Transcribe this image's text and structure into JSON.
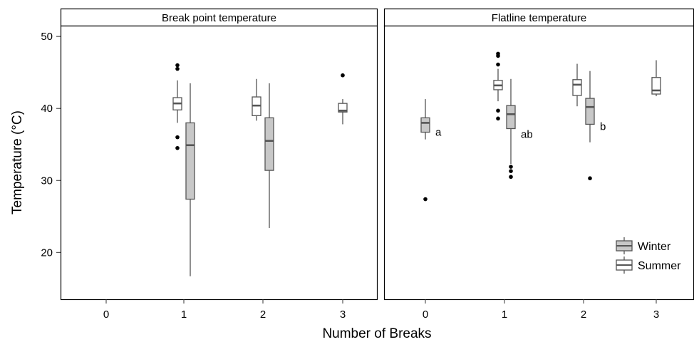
{
  "chart_data": {
    "type": "boxplot",
    "xlabel": "Number of Breaks",
    "ylabel": "Temperature (°C)",
    "ylim": [
      13.5,
      51.5
    ],
    "yticks": [
      20,
      30,
      40,
      50
    ],
    "categories": [
      "0",
      "1",
      "2",
      "3"
    ],
    "legend": {
      "position": "bottom-right",
      "entries": [
        {
          "name": "Winter",
          "color": "#c8c8c8"
        },
        {
          "name": "Summer",
          "color": "#ffffff"
        }
      ]
    },
    "panels": [
      {
        "strip_label": "Break point temperature",
        "boxes": [
          {
            "category": "1",
            "series": "Summer",
            "q1": 39.8,
            "median": 40.7,
            "q3": 41.5,
            "whisker_low": 38.0,
            "whisker_high": 43.9,
            "outliers": [
              46.0,
              45.5,
              36.0,
              34.5
            ]
          },
          {
            "category": "1",
            "series": "Winter",
            "q1": 27.4,
            "median": 34.9,
            "q3": 38.0,
            "whisker_low": 16.7,
            "whisker_high": 43.5,
            "outliers": []
          },
          {
            "category": "2",
            "series": "Summer",
            "q1": 39.0,
            "median": 40.4,
            "q3": 41.6,
            "whisker_low": 38.3,
            "whisker_high": 44.1,
            "outliers": []
          },
          {
            "category": "2",
            "series": "Winter",
            "q1": 31.4,
            "median": 35.5,
            "q3": 38.7,
            "whisker_low": 23.4,
            "whisker_high": 43.5,
            "outliers": []
          },
          {
            "category": "3",
            "series": "Summer",
            "q1": 39.5,
            "median": 39.7,
            "q3": 40.7,
            "whisker_low": 37.8,
            "whisker_high": 41.3,
            "outliers": [
              44.6
            ]
          }
        ],
        "annotations": []
      },
      {
        "strip_label": "Flatline temperature",
        "boxes": [
          {
            "category": "0",
            "series": "Winter",
            "q1": 36.7,
            "median": 38.0,
            "q3": 38.7,
            "whisker_low": 35.7,
            "whisker_high": 41.3,
            "outliers": [
              27.4
            ]
          },
          {
            "category": "1",
            "series": "Summer",
            "q1": 42.6,
            "median": 43.2,
            "q3": 43.9,
            "whisker_low": 41.0,
            "whisker_high": 45.5,
            "outliers": [
              47.6,
              47.3,
              46.1,
              39.7,
              38.6
            ]
          },
          {
            "category": "1",
            "series": "Winter",
            "q1": 37.2,
            "median": 39.2,
            "q3": 40.4,
            "whisker_low": 32.3,
            "whisker_high": 44.1,
            "outliers": [
              31.9,
              31.3,
              30.5
            ]
          },
          {
            "category": "2",
            "series": "Summer",
            "q1": 41.8,
            "median": 43.3,
            "q3": 44.0,
            "whisker_low": 40.3,
            "whisker_high": 46.2,
            "outliers": []
          },
          {
            "category": "2",
            "series": "Winter",
            "q1": 37.8,
            "median": 40.2,
            "q3": 41.4,
            "whisker_low": 35.3,
            "whisker_high": 45.2,
            "outliers": [
              30.3
            ]
          },
          {
            "category": "3",
            "series": "Summer",
            "q1": 42.0,
            "median": 42.5,
            "q3": 44.3,
            "whisker_low": 41.7,
            "whisker_high": 46.7,
            "outliers": []
          }
        ],
        "annotations": [
          {
            "category": "0",
            "y": 36.7,
            "text": "a"
          },
          {
            "category": "1",
            "y": 36.4,
            "text": "ab"
          },
          {
            "category": "2",
            "y": 37.5,
            "text": "b"
          }
        ]
      }
    ]
  }
}
